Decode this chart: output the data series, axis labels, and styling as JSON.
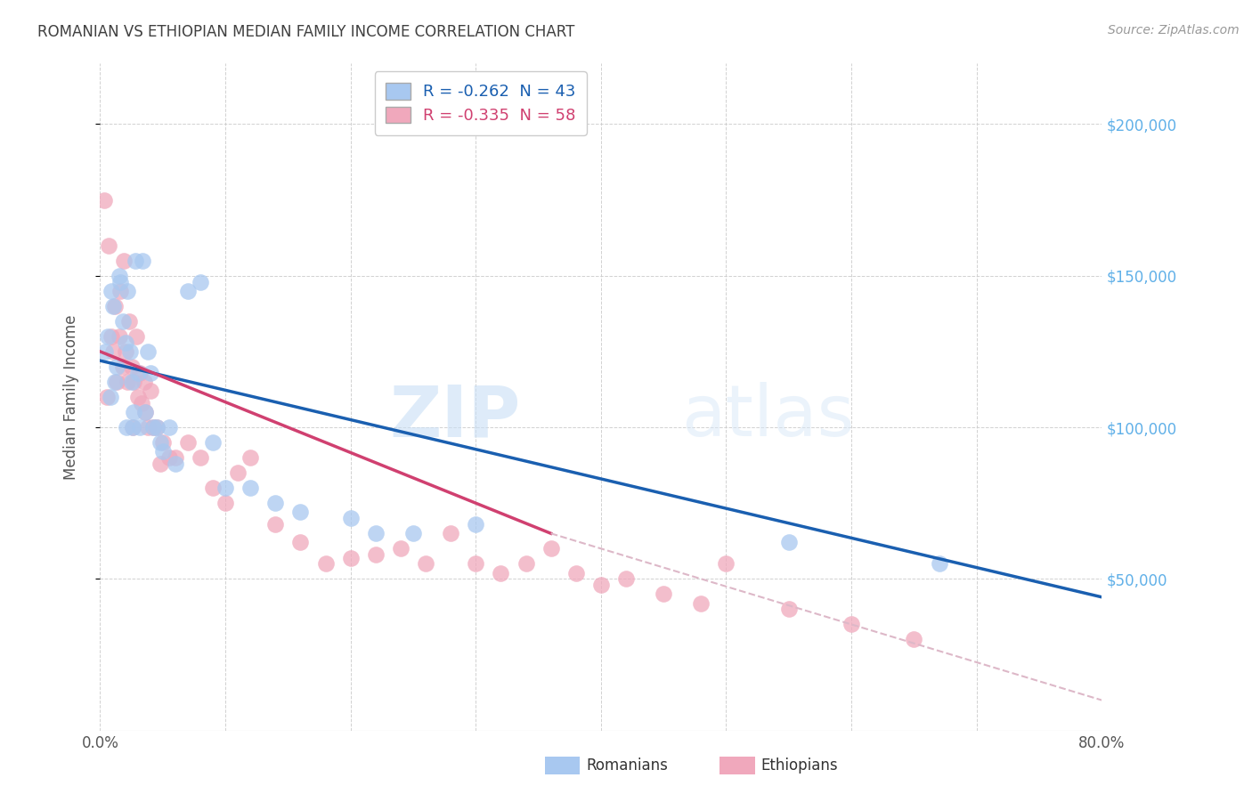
{
  "title": "ROMANIAN VS ETHIOPIAN MEDIAN FAMILY INCOME CORRELATION CHART",
  "source": "Source: ZipAtlas.com",
  "ylabel": "Median Family Income",
  "watermark_zip": "ZIP",
  "watermark_atlas": "atlas",
  "legend_R_romanian": "R = -0.262",
  "legend_N_romanian": "N = 43",
  "legend_R_ethiopian": "R = -0.335",
  "legend_N_ethiopian": "N = 58",
  "legend_label_romanian": "Romanians",
  "legend_label_ethiopian": "Ethiopians",
  "R_romanian": -0.262,
  "N_romanian": 43,
  "R_ethiopian": -0.335,
  "N_ethiopian": 58,
  "ylim": [
    0,
    220000
  ],
  "xlim": [
    0.0,
    0.8
  ],
  "yticks": [
    50000,
    100000,
    150000,
    200000
  ],
  "ytick_labels": [
    "$50,000",
    "$100,000",
    "$150,000",
    "$200,000"
  ],
  "xtick_positions": [
    0.0,
    0.1,
    0.2,
    0.3,
    0.4,
    0.5,
    0.6,
    0.7,
    0.8
  ],
  "color_romanian": "#A8C8F0",
  "color_ethiopian": "#F0A8BC",
  "color_line_romanian": "#1A5FB0",
  "color_line_ethiopian": "#D04070",
  "color_line_ethiopian_dash": "#DDB8C8",
  "background_color": "#FFFFFF",
  "grid_color": "#CCCCCC",
  "title_color": "#404040",
  "yright_color": "#60B0E8",
  "line_romanian_x0": 0.0,
  "line_romanian_y0": 122000,
  "line_romanian_x1": 0.8,
  "line_romanian_y1": 44000,
  "line_ethiopian_x0": 0.0,
  "line_ethiopian_y0": 125000,
  "line_ethiopian_x1": 0.36,
  "line_ethiopian_y1": 65000,
  "line_ethiopian_dash_x0": 0.36,
  "line_ethiopian_dash_y0": 65000,
  "line_ethiopian_dash_x1": 0.8,
  "line_ethiopian_dash_y1": 10000,
  "romanian_x": [
    0.004,
    0.006,
    0.008,
    0.009,
    0.01,
    0.012,
    0.013,
    0.015,
    0.016,
    0.018,
    0.02,
    0.021,
    0.022,
    0.024,
    0.025,
    0.026,
    0.027,
    0.028,
    0.03,
    0.032,
    0.034,
    0.036,
    0.038,
    0.04,
    0.042,
    0.045,
    0.048,
    0.05,
    0.055,
    0.06,
    0.07,
    0.08,
    0.09,
    0.1,
    0.12,
    0.14,
    0.16,
    0.2,
    0.22,
    0.25,
    0.3,
    0.55,
    0.67
  ],
  "romanian_y": [
    125000,
    130000,
    110000,
    145000,
    140000,
    115000,
    120000,
    150000,
    148000,
    135000,
    128000,
    100000,
    145000,
    125000,
    115000,
    100000,
    105000,
    155000,
    118000,
    100000,
    155000,
    105000,
    125000,
    118000,
    100000,
    100000,
    95000,
    92000,
    100000,
    88000,
    145000,
    148000,
    95000,
    80000,
    80000,
    75000,
    72000,
    70000,
    65000,
    65000,
    68000,
    62000,
    55000
  ],
  "ethiopian_x": [
    0.003,
    0.005,
    0.007,
    0.009,
    0.01,
    0.012,
    0.013,
    0.015,
    0.016,
    0.018,
    0.019,
    0.02,
    0.022,
    0.023,
    0.025,
    0.026,
    0.027,
    0.029,
    0.03,
    0.032,
    0.033,
    0.035,
    0.036,
    0.038,
    0.04,
    0.042,
    0.045,
    0.048,
    0.05,
    0.055,
    0.06,
    0.07,
    0.08,
    0.09,
    0.1,
    0.11,
    0.12,
    0.14,
    0.16,
    0.18,
    0.2,
    0.22,
    0.24,
    0.26,
    0.28,
    0.3,
    0.32,
    0.34,
    0.36,
    0.38,
    0.4,
    0.42,
    0.45,
    0.48,
    0.5,
    0.55,
    0.6,
    0.65
  ],
  "ethiopian_y": [
    175000,
    110000,
    160000,
    130000,
    125000,
    140000,
    115000,
    130000,
    145000,
    120000,
    155000,
    125000,
    115000,
    135000,
    120000,
    100000,
    115000,
    130000,
    110000,
    118000,
    108000,
    115000,
    105000,
    100000,
    112000,
    100000,
    100000,
    88000,
    95000,
    90000,
    90000,
    95000,
    90000,
    80000,
    75000,
    85000,
    90000,
    68000,
    62000,
    55000,
    57000,
    58000,
    60000,
    55000,
    65000,
    55000,
    52000,
    55000,
    60000,
    52000,
    48000,
    50000,
    45000,
    42000,
    55000,
    40000,
    35000,
    30000
  ]
}
